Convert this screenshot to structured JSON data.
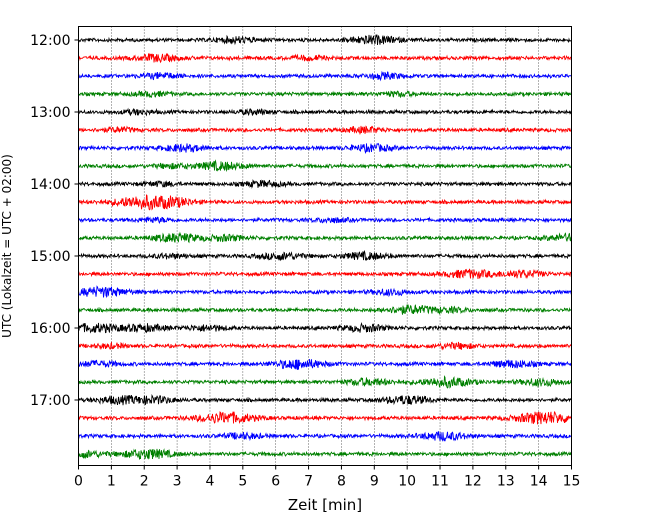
{
  "chart_data": {
    "type": "line",
    "title": "",
    "xlabel": "Zeit  [min]",
    "ylabel": "UTC (Lokalzeit = UTC + 02:00)",
    "xlim": [
      0,
      15
    ],
    "x_ticks": [
      0,
      1,
      2,
      3,
      4,
      5,
      6,
      7,
      8,
      9,
      10,
      11,
      12,
      13,
      14,
      15
    ],
    "y_tick_labels": [
      "12:00",
      "13:00",
      "14:00",
      "15:00",
      "16:00",
      "17:00"
    ],
    "grid": "vertical dotted at each minute",
    "trace_interval_min": 15,
    "start_time": "12:00",
    "trace_colors": [
      "#000000",
      "#ff0000",
      "#0000ff",
      "#008000"
    ],
    "traces": [
      {
        "start": "12:00",
        "color": "#000000",
        "bursts": [
          [
            9.0,
            0.6
          ],
          [
            4.8,
            0.4
          ]
        ]
      },
      {
        "start": "12:15",
        "color": "#ff0000",
        "bursts": [
          [
            2.4,
            0.5
          ],
          [
            7.0,
            0.3
          ]
        ]
      },
      {
        "start": "12:30",
        "color": "#0000ff",
        "bursts": [
          [
            2.5,
            0.4
          ],
          [
            9.3,
            0.4
          ]
        ]
      },
      {
        "start": "12:45",
        "color": "#008000",
        "bursts": [
          [
            2.2,
            0.3
          ],
          [
            9.7,
            0.3
          ]
        ]
      },
      {
        "start": "13:00",
        "color": "#000000",
        "bursts": [
          [
            1.8,
            0.3
          ],
          [
            5.3,
            0.3
          ]
        ]
      },
      {
        "start": "13:15",
        "color": "#ff0000",
        "bursts": [
          [
            1.2,
            0.3
          ],
          [
            8.7,
            0.4
          ]
        ]
      },
      {
        "start": "13:30",
        "color": "#0000ff",
        "bursts": [
          [
            3.2,
            0.5
          ],
          [
            8.9,
            0.5
          ]
        ]
      },
      {
        "start": "13:45",
        "color": "#008000",
        "bursts": [
          [
            4.3,
            0.6
          ],
          [
            2.8,
            0.3
          ]
        ]
      },
      {
        "start": "14:00",
        "color": "#000000",
        "bursts": [
          [
            5.6,
            0.4
          ],
          [
            2.5,
            0.3
          ]
        ]
      },
      {
        "start": "14:15",
        "color": "#ff0000",
        "bursts": [
          [
            2.1,
            1.0
          ],
          [
            3.0,
            0.3
          ]
        ]
      },
      {
        "start": "14:30",
        "color": "#0000ff",
        "bursts": [
          [
            7.7,
            0.3
          ],
          [
            2.3,
            0.3
          ]
        ]
      },
      {
        "start": "14:45",
        "color": "#008000",
        "bursts": [
          [
            3.0,
            0.6
          ],
          [
            4.5,
            0.4
          ],
          [
            14.9,
            0.5
          ]
        ]
      },
      {
        "start": "15:00",
        "color": "#000000",
        "bursts": [
          [
            6.2,
            0.5
          ],
          [
            8.7,
            0.5
          ],
          [
            2.8,
            0.3
          ]
        ]
      },
      {
        "start": "15:15",
        "color": "#ff0000",
        "bursts": [
          [
            11.9,
            0.6
          ],
          [
            13.5,
            0.5
          ]
        ]
      },
      {
        "start": "15:30",
        "color": "#0000ff",
        "bursts": [
          [
            0.7,
            0.7
          ],
          [
            9.5,
            0.4
          ]
        ]
      },
      {
        "start": "15:45",
        "color": "#008000",
        "bursts": [
          [
            10.1,
            0.6
          ],
          [
            11.3,
            0.3
          ]
        ]
      },
      {
        "start": "16:00",
        "color": "#000000",
        "bursts": [
          [
            0.5,
            0.6
          ],
          [
            2.0,
            0.5
          ],
          [
            3.9,
            0.4
          ],
          [
            8.7,
            0.5
          ]
        ]
      },
      {
        "start": "16:15",
        "color": "#ff0000",
        "bursts": [
          [
            11.5,
            0.4
          ],
          [
            1.0,
            0.3
          ]
        ]
      },
      {
        "start": "16:30",
        "color": "#0000ff",
        "bursts": [
          [
            6.7,
            0.7
          ],
          [
            0.6,
            0.4
          ],
          [
            13.2,
            0.5
          ]
        ]
      },
      {
        "start": "16:45",
        "color": "#008000",
        "bursts": [
          [
            11.2,
            0.7
          ],
          [
            8.8,
            0.5
          ],
          [
            14.1,
            0.5
          ]
        ]
      },
      {
        "start": "17:00",
        "color": "#000000",
        "bursts": [
          [
            1.2,
            0.5
          ],
          [
            2.3,
            0.5
          ],
          [
            10.0,
            0.6
          ]
        ]
      },
      {
        "start": "17:15",
        "color": "#ff0000",
        "bursts": [
          [
            4.5,
            0.8
          ],
          [
            14.2,
            0.9
          ]
        ]
      },
      {
        "start": "17:30",
        "color": "#0000ff",
        "bursts": [
          [
            11.1,
            0.6
          ],
          [
            5.0,
            0.4
          ]
        ]
      },
      {
        "start": "17:45",
        "color": "#008000",
        "bursts": [
          [
            2.1,
            0.7
          ],
          [
            0.1,
            0.5
          ]
        ]
      }
    ]
  }
}
